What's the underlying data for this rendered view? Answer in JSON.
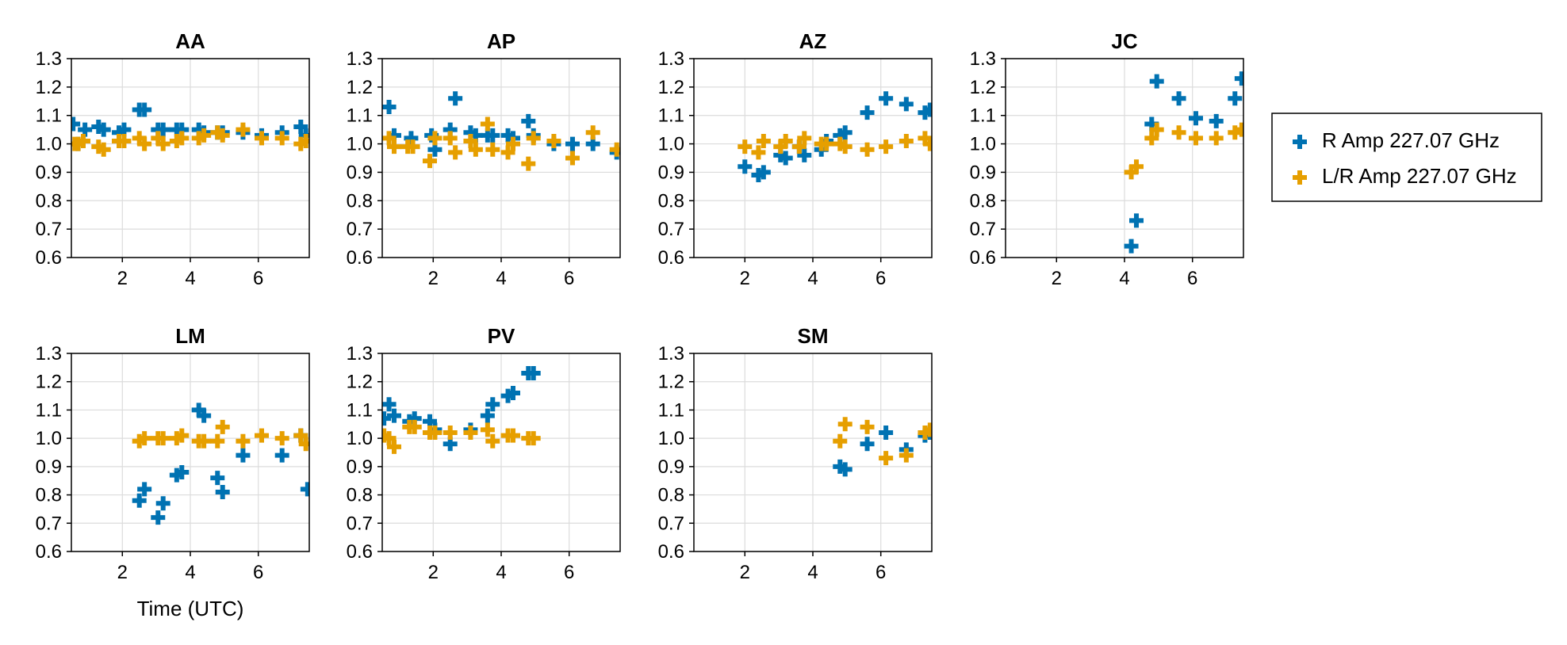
{
  "chart_data": {
    "type": "scatter",
    "marker": "plus",
    "xlabel": "Time (UTC)",
    "xlim": [
      0.5,
      7.5
    ],
    "ylim": [
      0.6,
      1.3
    ],
    "xticks": [
      2,
      4,
      6
    ],
    "yticks": [
      0.6,
      0.7,
      0.8,
      0.9,
      1.0,
      1.1,
      1.2,
      1.3
    ],
    "ytick_labels": [
      "0.6",
      "0.7",
      "0.8",
      "0.9",
      "1.0",
      "1.1",
      "1.2",
      "1.3"
    ],
    "grid": true,
    "legend_position": "right",
    "series_info": [
      {
        "name": "R Amp 227.07 GHz",
        "color": "#0072B2"
      },
      {
        "name": "L/R Amp 227.07 GHz",
        "color": "#E69F00"
      }
    ],
    "panels": [
      {
        "title": "AA",
        "series": [
          {
            "name": "R Amp 227.07 GHz",
            "points": [
              [
                0.55,
                1.07
              ],
              [
                0.7,
                1.0
              ],
              [
                0.9,
                1.05
              ],
              [
                1.3,
                1.06
              ],
              [
                1.45,
                1.05
              ],
              [
                1.9,
                1.04
              ],
              [
                2.05,
                1.05
              ],
              [
                2.5,
                1.12
              ],
              [
                2.65,
                1.12
              ],
              [
                3.05,
                1.05
              ],
              [
                3.2,
                1.05
              ],
              [
                3.6,
                1.05
              ],
              [
                3.75,
                1.05
              ],
              [
                4.25,
                1.05
              ],
              [
                4.4,
                1.04
              ],
              [
                4.8,
                1.04
              ],
              [
                4.95,
                1.04
              ],
              [
                5.55,
                1.04
              ],
              [
                6.1,
                1.03
              ],
              [
                6.7,
                1.04
              ],
              [
                7.25,
                1.06
              ],
              [
                7.4,
                1.03
              ]
            ]
          },
          {
            "name": "L/R Amp 227.07 GHz",
            "points": [
              [
                0.6,
                1.0
              ],
              [
                0.7,
                1.0
              ],
              [
                0.85,
                1.01
              ],
              [
                1.3,
                0.99
              ],
              [
                1.45,
                0.98
              ],
              [
                1.9,
                1.01
              ],
              [
                2.05,
                1.01
              ],
              [
                2.5,
                1.02
              ],
              [
                2.65,
                1.0
              ],
              [
                3.05,
                1.02
              ],
              [
                3.2,
                1.0
              ],
              [
                3.6,
                1.01
              ],
              [
                3.75,
                1.02
              ],
              [
                4.25,
                1.02
              ],
              [
                4.4,
                1.03
              ],
              [
                4.8,
                1.04
              ],
              [
                4.95,
                1.03
              ],
              [
                5.55,
                1.05
              ],
              [
                6.1,
                1.02
              ],
              [
                6.7,
                1.02
              ],
              [
                7.25,
                1.0
              ],
              [
                7.4,
                1.01
              ]
            ]
          }
        ]
      },
      {
        "title": "AP",
        "series": [
          {
            "name": "R Amp 227.07 GHz",
            "points": [
              [
                0.7,
                1.13
              ],
              [
                0.85,
                1.03
              ],
              [
                1.35,
                1.02
              ],
              [
                1.95,
                1.03
              ],
              [
                2.05,
                0.98
              ],
              [
                2.5,
                1.05
              ],
              [
                2.65,
                1.16
              ],
              [
                3.1,
                1.04
              ],
              [
                3.25,
                1.03
              ],
              [
                3.6,
                1.03
              ],
              [
                3.75,
                1.03
              ],
              [
                4.2,
                1.03
              ],
              [
                4.35,
                1.02
              ],
              [
                4.8,
                1.08
              ],
              [
                4.95,
                1.03
              ],
              [
                5.55,
                1.0
              ],
              [
                6.1,
                1.0
              ],
              [
                6.7,
                1.0
              ],
              [
                7.4,
                0.97
              ]
            ]
          },
          {
            "name": "L/R Amp 227.07 GHz",
            "points": [
              [
                0.7,
                1.02
              ],
              [
                0.85,
                0.99
              ],
              [
                1.25,
                0.99
              ],
              [
                1.4,
                0.99
              ],
              [
                1.9,
                0.94
              ],
              [
                2.05,
                1.02
              ],
              [
                2.5,
                1.02
              ],
              [
                2.65,
                0.97
              ],
              [
                3.1,
                1.01
              ],
              [
                3.25,
                0.98
              ],
              [
                3.6,
                1.07
              ],
              [
                3.75,
                0.98
              ],
              [
                4.2,
                0.97
              ],
              [
                4.35,
                1.0
              ],
              [
                4.8,
                0.93
              ],
              [
                4.95,
                1.02
              ],
              [
                5.55,
                1.01
              ],
              [
                6.1,
                0.95
              ],
              [
                6.7,
                1.04
              ],
              [
                7.4,
                0.98
              ]
            ]
          }
        ]
      },
      {
        "title": "AZ",
        "series": [
          {
            "name": "R Amp 227.07 GHz",
            "points": [
              [
                2.0,
                0.92
              ],
              [
                2.4,
                0.89
              ],
              [
                2.55,
                0.9
              ],
              [
                3.05,
                0.96
              ],
              [
                3.2,
                0.95
              ],
              [
                3.6,
                0.99
              ],
              [
                3.75,
                0.96
              ],
              [
                4.25,
                0.98
              ],
              [
                4.4,
                1.01
              ],
              [
                4.8,
                1.03
              ],
              [
                4.95,
                1.04
              ],
              [
                5.6,
                1.11
              ],
              [
                6.15,
                1.16
              ],
              [
                6.75,
                1.14
              ],
              [
                7.3,
                1.11
              ],
              [
                7.45,
                1.12
              ]
            ]
          },
          {
            "name": "L/R Amp 227.07 GHz",
            "points": [
              [
                2.0,
                0.99
              ],
              [
                2.4,
                0.97
              ],
              [
                2.55,
                1.01
              ],
              [
                3.05,
                0.99
              ],
              [
                3.2,
                1.01
              ],
              [
                3.6,
                0.99
              ],
              [
                3.75,
                1.02
              ],
              [
                4.25,
                1.0
              ],
              [
                4.4,
                1.0
              ],
              [
                4.8,
                1.0
              ],
              [
                4.95,
                0.99
              ],
              [
                5.6,
                0.98
              ],
              [
                6.15,
                0.99
              ],
              [
                6.75,
                1.01
              ],
              [
                7.3,
                1.02
              ],
              [
                7.45,
                1.0
              ]
            ]
          }
        ]
      },
      {
        "title": "JC",
        "series": [
          {
            "name": "R Amp 227.07 GHz",
            "points": [
              [
                4.2,
                0.64
              ],
              [
                4.35,
                0.73
              ],
              [
                4.8,
                1.07
              ],
              [
                4.95,
                1.22
              ],
              [
                5.6,
                1.16
              ],
              [
                6.1,
                1.09
              ],
              [
                6.7,
                1.08
              ],
              [
                7.25,
                1.16
              ],
              [
                7.45,
                1.23
              ]
            ]
          },
          {
            "name": "L/R Amp 227.07 GHz",
            "points": [
              [
                4.2,
                0.9
              ],
              [
                4.35,
                0.92
              ],
              [
                4.8,
                1.02
              ],
              [
                4.95,
                1.05
              ],
              [
                5.6,
                1.04
              ],
              [
                6.1,
                1.02
              ],
              [
                6.7,
                1.02
              ],
              [
                7.25,
                1.04
              ],
              [
                7.45,
                1.05
              ]
            ]
          }
        ]
      },
      {
        "title": "LM",
        "series": [
          {
            "name": "R Amp 227.07 GHz",
            "points": [
              [
                2.5,
                0.78
              ],
              [
                2.65,
                0.82
              ],
              [
                3.05,
                0.72
              ],
              [
                3.2,
                0.77
              ],
              [
                3.6,
                0.87
              ],
              [
                3.75,
                0.88
              ],
              [
                4.25,
                1.1
              ],
              [
                4.4,
                1.08
              ],
              [
                4.8,
                0.86
              ],
              [
                4.95,
                0.81
              ],
              [
                5.55,
                0.94
              ],
              [
                6.7,
                0.94
              ],
              [
                7.25,
                1.01
              ],
              [
                7.45,
                0.82
              ]
            ]
          },
          {
            "name": "L/R Amp 227.07 GHz",
            "points": [
              [
                2.5,
                0.99
              ],
              [
                2.65,
                1.0
              ],
              [
                3.05,
                1.0
              ],
              [
                3.2,
                1.0
              ],
              [
                3.6,
                1.0
              ],
              [
                3.75,
                1.01
              ],
              [
                4.25,
                0.99
              ],
              [
                4.4,
                0.99
              ],
              [
                4.8,
                0.99
              ],
              [
                4.95,
                1.04
              ],
              [
                5.55,
                0.99
              ],
              [
                6.1,
                1.01
              ],
              [
                6.7,
                1.0
              ],
              [
                7.25,
                1.01
              ],
              [
                7.4,
                0.98
              ]
            ]
          }
        ]
      },
      {
        "title": "PV",
        "series": [
          {
            "name": "R Amp 227.07 GHz",
            "points": [
              [
                0.55,
                1.07
              ],
              [
                0.7,
                1.12
              ],
              [
                0.85,
                1.08
              ],
              [
                1.3,
                1.06
              ],
              [
                1.45,
                1.07
              ],
              [
                1.9,
                1.06
              ],
              [
                2.05,
                1.03
              ],
              [
                2.5,
                0.98
              ],
              [
                3.1,
                1.03
              ],
              [
                3.6,
                1.08
              ],
              [
                3.75,
                1.12
              ],
              [
                4.2,
                1.15
              ],
              [
                4.35,
                1.16
              ],
              [
                4.8,
                1.23
              ],
              [
                4.95,
                1.23
              ]
            ]
          },
          {
            "name": "L/R Amp 227.07 GHz",
            "points": [
              [
                0.55,
                1.01
              ],
              [
                0.7,
                1.0
              ],
              [
                0.85,
                0.97
              ],
              [
                1.3,
                1.04
              ],
              [
                1.45,
                1.04
              ],
              [
                1.9,
                1.02
              ],
              [
                2.05,
                1.02
              ],
              [
                2.5,
                1.02
              ],
              [
                3.1,
                1.02
              ],
              [
                3.6,
                1.03
              ],
              [
                3.75,
                0.99
              ],
              [
                4.2,
                1.01
              ],
              [
                4.35,
                1.01
              ],
              [
                4.8,
                1.0
              ],
              [
                4.95,
                1.0
              ]
            ]
          }
        ]
      },
      {
        "title": "SM",
        "series": [
          {
            "name": "R Amp 227.07 GHz",
            "points": [
              [
                4.8,
                0.9
              ],
              [
                4.95,
                0.89
              ],
              [
                5.6,
                0.98
              ],
              [
                6.15,
                1.02
              ],
              [
                6.75,
                0.96
              ],
              [
                7.3,
                1.01
              ],
              [
                7.45,
                1.02
              ]
            ]
          },
          {
            "name": "L/R Amp 227.07 GHz",
            "points": [
              [
                4.8,
                0.99
              ],
              [
                4.95,
                1.05
              ],
              [
                5.6,
                1.04
              ],
              [
                6.15,
                0.93
              ],
              [
                6.75,
                0.94
              ],
              [
                7.3,
                1.02
              ],
              [
                7.45,
                1.03
              ]
            ]
          }
        ]
      }
    ]
  }
}
